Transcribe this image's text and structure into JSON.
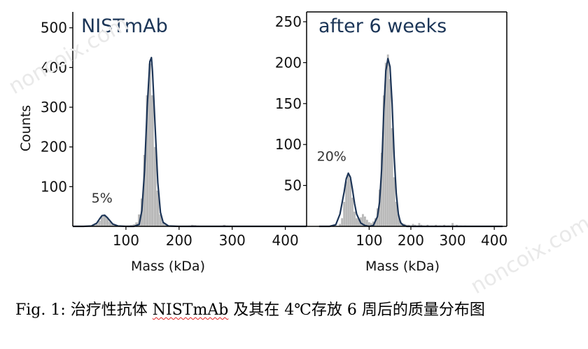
{
  "chart_data": [
    {
      "type": "histogram",
      "title": "NISTmAb",
      "xlabel": "Mass (kDa)",
      "ylabel": "Counts",
      "xlim": [
        0,
        440
      ],
      "ylim": [
        0,
        540
      ],
      "xticks": [
        100,
        200,
        300,
        400
      ],
      "yticks": [
        100,
        200,
        300,
        400,
        500
      ],
      "grid": false,
      "annotation": {
        "text": "5%",
        "x": 55,
        "y": 60
      },
      "bars": {
        "x": [
          40,
          45,
          50,
          55,
          60,
          65,
          70,
          75,
          80,
          85,
          90,
          95,
          100,
          105,
          110,
          115,
          120,
          125,
          130,
          135,
          140,
          145,
          150,
          155,
          160,
          165,
          170,
          175,
          180,
          185,
          190,
          195,
          200,
          205,
          210,
          215,
          220,
          225,
          230,
          235,
          240,
          280,
          285,
          290
        ],
        "y": [
          3,
          6,
          14,
          24,
          28,
          22,
          12,
          6,
          3,
          2,
          1,
          1,
          1,
          2,
          3,
          5,
          10,
          30,
          70,
          180,
          330,
          410,
          330,
          200,
          90,
          30,
          10,
          4,
          2,
          1,
          2,
          1,
          1,
          1,
          1,
          1,
          2,
          4,
          3,
          2,
          1,
          2,
          4,
          2
        ]
      },
      "fit": {
        "x": [
          0,
          20,
          35,
          45,
          50,
          55,
          60,
          65,
          75,
          85,
          100,
          115,
          125,
          130,
          135,
          140,
          145,
          148,
          150,
          155,
          160,
          165,
          170,
          180,
          200,
          250,
          300,
          350,
          440
        ],
        "y": [
          0,
          0,
          1,
          8,
          18,
          27,
          28,
          22,
          6,
          1,
          0,
          0,
          5,
          40,
          140,
          300,
          415,
          425,
          390,
          250,
          110,
          35,
          10,
          1,
          0,
          0,
          0,
          0,
          0
        ]
      }
    },
    {
      "type": "histogram",
      "title": "after 6 weeks",
      "xlabel": "Mass (kDa)",
      "ylabel": "",
      "xlim": [
        -50,
        430
      ],
      "ylim": [
        0,
        262
      ],
      "xticks": [
        100,
        200,
        300,
        400
      ],
      "yticks": [
        50,
        100,
        150,
        200,
        250
      ],
      "grid": false,
      "annotation": {
        "text": "20%",
        "x": 10,
        "y": 80
      },
      "bars": {
        "x": [
          30,
          35,
          40,
          45,
          50,
          55,
          60,
          65,
          70,
          75,
          80,
          85,
          90,
          95,
          100,
          105,
          110,
          115,
          120,
          125,
          130,
          135,
          140,
          145,
          150,
          155,
          160,
          165,
          170,
          175,
          180,
          185,
          190,
          195,
          200,
          205,
          210,
          215,
          220,
          225,
          230,
          240,
          250,
          260,
          270,
          280,
          290,
          300,
          310,
          320,
          330
        ],
        "y": [
          3,
          10,
          30,
          55,
          64,
          58,
          35,
          18,
          10,
          9,
          11,
          15,
          12,
          8,
          5,
          4,
          6,
          10,
          22,
          45,
          90,
          160,
          200,
          210,
          180,
          120,
          60,
          30,
          15,
          7,
          4,
          3,
          2,
          2,
          1,
          3,
          2,
          1,
          4,
          2,
          1,
          2,
          1,
          2,
          1,
          2,
          1,
          4,
          2,
          1,
          1
        ]
      },
      "fit": {
        "x": [
          -20,
          5,
          20,
          30,
          40,
          45,
          50,
          55,
          60,
          65,
          70,
          80,
          90,
          100,
          110,
          120,
          125,
          130,
          135,
          140,
          145,
          150,
          155,
          160,
          165,
          170,
          175,
          180,
          190,
          210,
          250,
          300,
          350,
          420
        ],
        "y": [
          0,
          0,
          2,
          15,
          42,
          58,
          65,
          60,
          45,
          28,
          15,
          4,
          1,
          0,
          1,
          12,
          30,
          70,
          140,
          190,
          205,
          195,
          150,
          85,
          40,
          15,
          5,
          2,
          0,
          0,
          0,
          0,
          0,
          0
        ]
      }
    }
  ],
  "caption": {
    "prefix": "Fig. 1:  治疗性抗体 ",
    "underlined": "NISTmAb",
    "suffix": " 及其在 4℃存放 6 周后的质量分布图"
  },
  "watermark": "noncoix.com"
}
